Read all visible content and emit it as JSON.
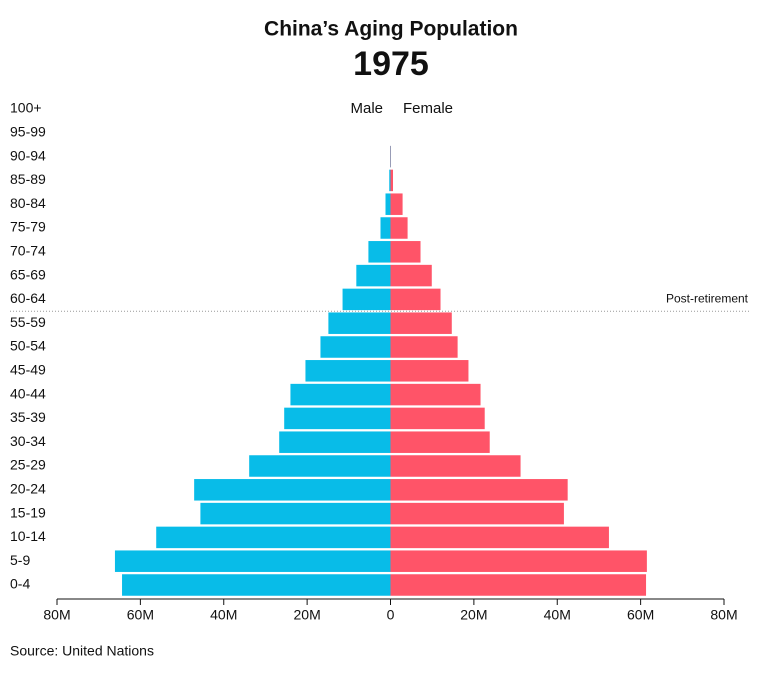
{
  "chart_data": {
    "type": "pyramid",
    "title": "China’s Aging Population",
    "subtitle": "1975",
    "categories": [
      "0-4",
      "5-9",
      "10-14",
      "15-19",
      "20-24",
      "25-29",
      "30-34",
      "35-39",
      "40-44",
      "45-49",
      "50-54",
      "55-59",
      "60-64",
      "65-69",
      "70-74",
      "75-79",
      "80-84",
      "85-89",
      "90-94",
      "95-99",
      "100+"
    ],
    "series": [
      {
        "name": "Male",
        "color": "#08bce8",
        "values": [
          64.4,
          66.1,
          56.2,
          45.6,
          47.1,
          33.9,
          26.7,
          25.5,
          24.0,
          20.4,
          16.8,
          14.9,
          11.5,
          8.2,
          5.3,
          2.4,
          1.2,
          0.3,
          0.1,
          0,
          0
        ]
      },
      {
        "name": "Female",
        "color": "#ff5468",
        "values": [
          61.3,
          61.5,
          52.4,
          41.6,
          42.5,
          31.2,
          23.8,
          22.6,
          21.6,
          18.7,
          16.1,
          14.7,
          12.0,
          9.9,
          7.2,
          4.1,
          2.9,
          0.6,
          0.1,
          0,
          0
        ]
      }
    ],
    "xlim": [
      -80,
      80
    ],
    "xticks": [
      {
        "value": -80,
        "label": "80M"
      },
      {
        "value": -60,
        "label": "60M"
      },
      {
        "value": -40,
        "label": "40M"
      },
      {
        "value": -20,
        "label": "20M"
      },
      0,
      {
        "value": 20,
        "label": "20M"
      },
      {
        "value": 40,
        "label": "40M"
      },
      {
        "value": 60,
        "label": "60M"
      },
      {
        "value": 80,
        "label": "80M"
      }
    ],
    "annotation": "Post-retirement",
    "source": "Source: United Nations"
  }
}
